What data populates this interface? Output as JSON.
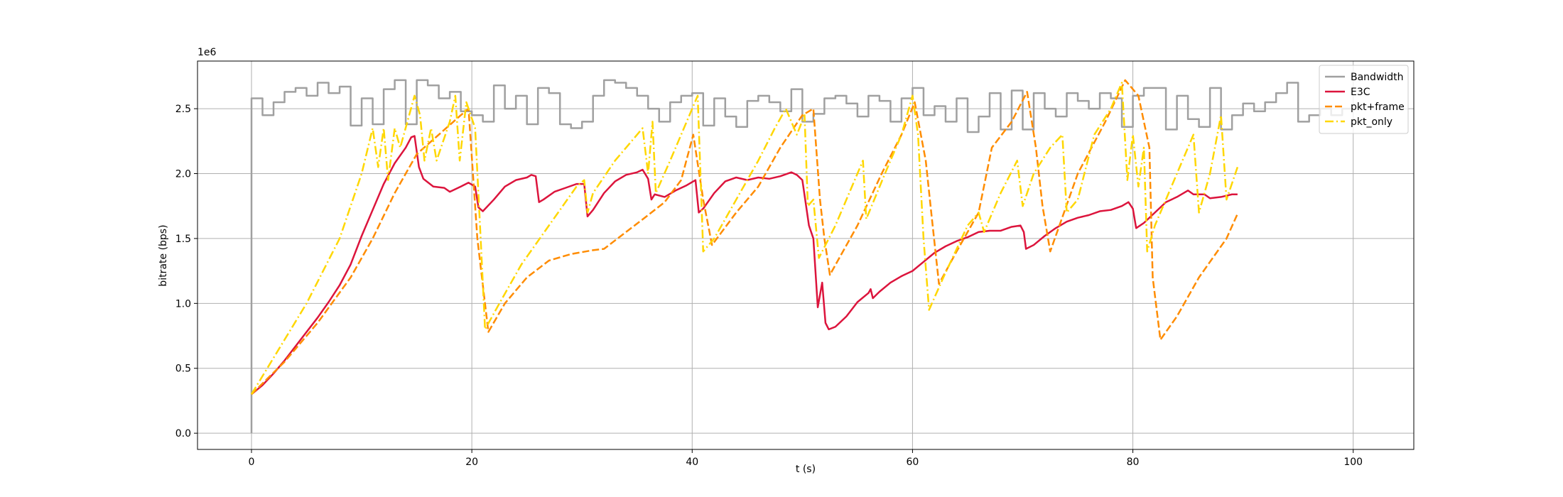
{
  "chart_data": {
    "type": "line",
    "xlabel": "t (s)",
    "ylabel": "bitrate (bps)",
    "y_offset_label": "1e6",
    "xlim": [
      -4.9,
      105.5
    ],
    "ylim": [
      -0.125,
      2.867
    ],
    "xticks": [
      0,
      20,
      40,
      60,
      80,
      100
    ],
    "yticks": [
      {
        "value": 0,
        "label": "0.0"
      },
      0.5,
      {
        "value": 1,
        "label": "1.0"
      },
      1.5,
      {
        "value": 2,
        "label": "2.0"
      },
      2.5
    ],
    "grid": true,
    "legend": "upper right",
    "series": [
      {
        "name": "Bandwidth",
        "color": "#a0a0a0",
        "style": "solid",
        "step": "post",
        "x": [
          0,
          0,
          1,
          2,
          3,
          4,
          5,
          6,
          7,
          8,
          9,
          10,
          11,
          12,
          13,
          14,
          15,
          16,
          17,
          18,
          19,
          20,
          21,
          22,
          23,
          24,
          25,
          26,
          27,
          28,
          29,
          30,
          31,
          32,
          33,
          34,
          35,
          36,
          37,
          38,
          39,
          40,
          41,
          42,
          43,
          44,
          45,
          46,
          47,
          48,
          49,
          50,
          51,
          52,
          53,
          54,
          55,
          56,
          57,
          58,
          59,
          60,
          61,
          62,
          63,
          64,
          65,
          66,
          67,
          68,
          69,
          70,
          71,
          72,
          73,
          74,
          75,
          76,
          77,
          78,
          79,
          80,
          81,
          82,
          83,
          84,
          85,
          86,
          87,
          88,
          89,
          90,
          91,
          92,
          93,
          94,
          95,
          96,
          97,
          98,
          99,
          100
        ],
        "values": [
          0,
          2.58,
          2.45,
          2.55,
          2.63,
          2.66,
          2.6,
          2.7,
          2.62,
          2.67,
          2.37,
          2.58,
          2.38,
          2.65,
          2.72,
          2.38,
          2.72,
          2.68,
          2.58,
          2.63,
          2.48,
          2.45,
          2.4,
          2.68,
          2.5,
          2.6,
          2.38,
          2.66,
          2.62,
          2.38,
          2.35,
          2.4,
          2.6,
          2.72,
          2.7,
          2.66,
          2.6,
          2.5,
          2.4,
          2.55,
          2.6,
          2.62,
          2.37,
          2.58,
          2.44,
          2.36,
          2.56,
          2.6,
          2.55,
          2.48,
          2.65,
          2.4,
          2.46,
          2.58,
          2.6,
          2.54,
          2.44,
          2.6,
          2.56,
          2.4,
          2.58,
          2.66,
          2.45,
          2.52,
          2.4,
          2.58,
          2.32,
          2.44,
          2.62,
          2.34,
          2.64,
          2.34,
          2.62,
          2.5,
          2.44,
          2.62,
          2.56,
          2.5,
          2.62,
          2.58,
          2.36,
          2.6,
          2.66,
          2.66,
          2.34,
          2.6,
          2.42,
          2.36,
          2.66,
          2.34,
          2.45,
          2.54,
          2.48,
          2.55,
          2.62,
          2.7,
          2.4,
          2.45,
          2.5,
          2.45,
          2.5,
          2.5
        ]
      },
      {
        "name": "E3C",
        "color": "#dc143c",
        "style": "solid",
        "x": [
          0,
          1,
          2,
          3,
          4,
          5,
          6,
          7,
          8,
          9,
          10,
          11,
          12,
          13,
          14,
          14.5,
          14.8,
          15.2,
          15.6,
          16.5,
          17.5,
          18,
          19,
          19.7,
          20.3,
          20.6,
          21,
          22,
          23,
          24,
          25,
          25.4,
          25.8,
          26.1,
          26.5,
          27.5,
          28.5,
          29.5,
          30.2,
          30.5,
          31,
          32,
          33,
          34,
          35,
          35.5,
          36,
          36.3,
          36.6,
          37.5,
          38.5,
          39.5,
          40.3,
          40.6,
          41,
          42,
          43,
          44,
          45,
          46,
          47,
          48,
          49,
          49.5,
          50,
          50.6,
          51,
          51.4,
          51.8,
          52.1,
          52.4,
          53,
          54,
          55,
          56,
          56.2,
          56.4,
          57,
          58,
          59,
          60,
          61,
          62,
          63,
          64,
          65,
          66,
          67,
          68,
          69,
          69.8,
          70.1,
          70.3,
          71,
          72,
          73,
          74,
          75,
          76,
          77,
          78,
          79,
          79.6,
          80,
          80.3,
          81,
          82,
          83,
          84,
          85,
          85.5,
          86.5,
          87,
          88,
          89,
          89.5
        ],
        "values": [
          0.3,
          0.37,
          0.46,
          0.56,
          0.67,
          0.78,
          0.89,
          1.01,
          1.14,
          1.3,
          1.52,
          1.72,
          1.92,
          2.08,
          2.2,
          2.28,
          2.29,
          2.05,
          1.96,
          1.9,
          1.89,
          1.86,
          1.9,
          1.93,
          1.9,
          1.74,
          1.71,
          1.8,
          1.9,
          1.95,
          1.97,
          1.99,
          1.98,
          1.78,
          1.8,
          1.86,
          1.89,
          1.92,
          1.92,
          1.67,
          1.72,
          1.85,
          1.94,
          1.99,
          2.01,
          2.03,
          1.96,
          1.8,
          1.84,
          1.82,
          1.87,
          1.91,
          1.95,
          1.7,
          1.73,
          1.85,
          1.94,
          1.97,
          1.95,
          1.97,
          1.96,
          1.98,
          2.01,
          1.99,
          1.95,
          1.6,
          1.5,
          0.97,
          1.16,
          0.85,
          0.8,
          0.82,
          0.9,
          1.01,
          1.08,
          1.11,
          1.04,
          1.09,
          1.16,
          1.21,
          1.25,
          1.32,
          1.39,
          1.44,
          1.48,
          1.51,
          1.55,
          1.56,
          1.56,
          1.59,
          1.6,
          1.55,
          1.42,
          1.45,
          1.52,
          1.58,
          1.63,
          1.66,
          1.68,
          1.71,
          1.72,
          1.75,
          1.78,
          1.73,
          1.58,
          1.62,
          1.7,
          1.78,
          1.82,
          1.87,
          1.84,
          1.84,
          1.81,
          1.82,
          1.84,
          1.84
        ]
      },
      {
        "name": "pkt+frame",
        "color": "#ff8c00",
        "style": "dashed",
        "x": [
          0,
          3,
          6,
          9,
          11,
          13,
          15,
          17,
          19,
          19.7,
          20.5,
          21.5,
          23,
          25,
          27,
          29,
          31,
          32,
          34,
          36,
          37.5,
          39,
          40.1,
          41,
          41.8,
          44,
          46,
          48,
          50,
          51,
          51.6,
          52,
          52.5,
          55,
          57.2,
          59,
          60.2,
          61.2,
          61.7,
          62.4,
          64,
          66,
          67.2,
          69,
          70.4,
          71.2,
          71.8,
          72.5,
          75,
          77.5,
          79.3,
          80.5,
          81.5,
          81.8,
          82.5,
          84,
          86,
          88.5,
          89.5
        ],
        "values": [
          0.3,
          0.55,
          0.85,
          1.2,
          1.5,
          1.85,
          2.15,
          2.3,
          2.45,
          2.5,
          1.5,
          0.78,
          1.0,
          1.2,
          1.33,
          1.38,
          1.41,
          1.42,
          1.55,
          1.68,
          1.78,
          1.95,
          2.3,
          1.8,
          1.45,
          1.7,
          1.9,
          2.2,
          2.45,
          2.5,
          1.8,
          1.5,
          1.22,
          1.6,
          2.0,
          2.3,
          2.55,
          2.1,
          1.7,
          1.15,
          1.4,
          1.7,
          2.2,
          2.4,
          2.63,
          2.2,
          1.75,
          1.4,
          2.0,
          2.4,
          2.72,
          2.6,
          2.2,
          1.2,
          0.72,
          0.9,
          1.2,
          1.5,
          1.69
        ]
      },
      {
        "name": "pkt_only",
        "color": "#ffd700",
        "style": "dashdot",
        "x": [
          0,
          2.5,
          5,
          8,
          10,
          11,
          11.5,
          12,
          12.4,
          13,
          13.5,
          14.8,
          15.3,
          15.7,
          16.3,
          16.8,
          18,
          18.5,
          18.9,
          19.5,
          20.3,
          20.8,
          21.2,
          22.5,
          24.5,
          27,
          29.5,
          30.2,
          30.5,
          31,
          33,
          35,
          35.5,
          36,
          36.4,
          36.7,
          38,
          39.5,
          40.5,
          41,
          42,
          44,
          46,
          47.5,
          48.5,
          49.5,
          50.2,
          50.5,
          51,
          51.5,
          53,
          55,
          55.5,
          55.8,
          57.5,
          59,
          60,
          60.5,
          61,
          61.5,
          62.8,
          65,
          66,
          66.5,
          68,
          69.5,
          70,
          71,
          72.5,
          73.6,
          74,
          75,
          76.5,
          78,
          79,
          79.5,
          80,
          80.5,
          81,
          81.3,
          82,
          83.5,
          84.5,
          85.5,
          86,
          87,
          88,
          88.5,
          89.5
        ],
        "values": [
          0.3,
          0.65,
          1.0,
          1.5,
          2.0,
          2.35,
          2.05,
          2.35,
          1.95,
          2.35,
          2.2,
          2.6,
          2.45,
          2.1,
          2.35,
          2.1,
          2.4,
          2.6,
          2.1,
          2.55,
          2.35,
          1.5,
          0.8,
          1.0,
          1.3,
          1.6,
          1.9,
          1.95,
          1.7,
          1.85,
          2.1,
          2.3,
          2.35,
          2.0,
          2.4,
          1.85,
          2.1,
          2.4,
          2.6,
          1.4,
          1.5,
          1.8,
          2.1,
          2.35,
          2.5,
          2.3,
          2.45,
          1.75,
          1.8,
          1.35,
          1.6,
          2.0,
          2.1,
          1.65,
          2.0,
          2.3,
          2.6,
          2.3,
          1.5,
          0.95,
          1.2,
          1.6,
          1.7,
          1.55,
          1.85,
          2.1,
          1.75,
          2.0,
          2.2,
          2.3,
          1.7,
          1.8,
          2.3,
          2.5,
          2.7,
          1.95,
          2.3,
          1.9,
          2.2,
          1.4,
          1.6,
          1.9,
          2.1,
          2.3,
          1.7,
          2.0,
          2.45,
          1.8,
          2.05
        ]
      }
    ]
  }
}
